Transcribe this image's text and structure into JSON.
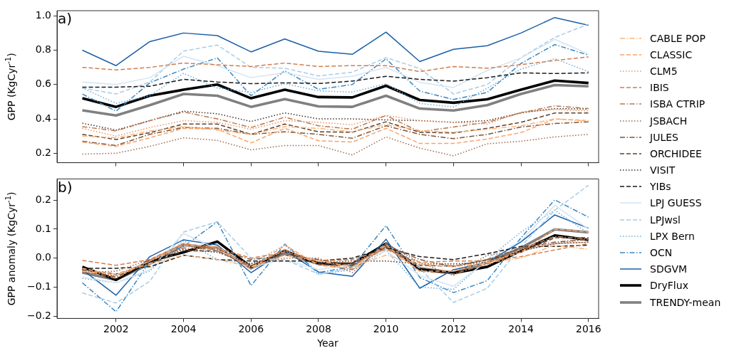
{
  "chart_data": [
    {
      "type": "line",
      "ylabel": "GPP (KgCyr$^{-1}$)",
      "annotations": [
        "a)"
      ],
      "x": [
        2001,
        2002,
        2003,
        2004,
        2005,
        2006,
        2007,
        2008,
        2009,
        2010,
        2011,
        2012,
        2013,
        2014,
        2015,
        2016
      ],
      "xlim": [
        2000.25,
        2016.3
      ],
      "xticks": [
        2002,
        2004,
        2006,
        2008,
        2010,
        2012,
        2014,
        2016
      ],
      "ylim": [
        0.145,
        1.03
      ],
      "yticks": [
        {
          "value": 0.2,
          "label": "0.2"
        },
        0.4,
        0.6,
        0.8,
        {
          "value": 1.0,
          "label": "1.0"
        }
      ],
      "tick_labels": "y",
      "legend": "right",
      "series": [
        {
          "name": "CABLE POP",
          "color": "#fdb57a",
          "line_style": "dashdot",
          "values": [
            0.3,
            0.29,
            0.33,
            0.355,
            0.335,
            0.31,
            0.355,
            0.345,
            0.325,
            0.367,
            0.333,
            0.322,
            0.34,
            0.36,
            0.4,
            0.387
          ]
        },
        {
          "name": "CLASSIC",
          "color": "#fca26a",
          "line_style": "dashed",
          "values": [
            0.265,
            0.24,
            0.29,
            0.345,
            0.34,
            0.26,
            0.345,
            0.273,
            0.265,
            0.345,
            0.257,
            0.257,
            0.283,
            0.32,
            0.4,
            0.39
          ]
        },
        {
          "name": "CLM5",
          "color": "#ec9362",
          "line_style": "dotted",
          "values": [
            0.345,
            0.3,
            0.35,
            0.39,
            0.38,
            0.34,
            0.39,
            0.38,
            0.366,
            0.42,
            0.39,
            0.38,
            0.37,
            0.44,
            0.455,
            0.446
          ]
        },
        {
          "name": "IBIS",
          "color": "#d07f50",
          "line_style": "dashed",
          "values": [
            0.7,
            0.685,
            0.7,
            0.725,
            0.715,
            0.705,
            0.725,
            0.705,
            0.71,
            0.71,
            0.675,
            0.705,
            0.695,
            0.716,
            0.74,
            0.761
          ]
        },
        {
          "name": "ISBA CTRIP",
          "color": "#b9784e",
          "line_style": "dashdot",
          "values": [
            0.355,
            0.33,
            0.39,
            0.44,
            0.4,
            0.35,
            0.41,
            0.36,
            0.34,
            0.42,
            0.325,
            0.353,
            0.38,
            0.435,
            0.476,
            0.46
          ]
        },
        {
          "name": "JSBACH",
          "color": "#a0674a",
          "line_style": "dotted",
          "values": [
            0.195,
            0.2,
            0.24,
            0.29,
            0.275,
            0.22,
            0.245,
            0.245,
            0.19,
            0.295,
            0.23,
            0.185,
            0.255,
            0.27,
            0.295,
            0.31
          ]
        },
        {
          "name": "JULES",
          "color": "#7d5538",
          "line_style": "dashdot",
          "values": [
            0.27,
            0.245,
            0.31,
            0.35,
            0.345,
            0.31,
            0.325,
            0.31,
            0.287,
            0.36,
            0.31,
            0.285,
            0.31,
            0.353,
            0.373,
            0.383
          ]
        },
        {
          "name": "ORCHIDEE",
          "color": "#5e412b",
          "line_style": "dashed",
          "values": [
            0.31,
            0.28,
            0.32,
            0.37,
            0.37,
            0.31,
            0.37,
            0.325,
            0.322,
            0.383,
            0.322,
            0.318,
            0.345,
            0.38,
            0.434,
            0.434
          ]
        },
        {
          "name": "VISIT",
          "color": "#3f2d21",
          "line_style": "dotted",
          "values": [
            0.375,
            0.335,
            0.39,
            0.445,
            0.43,
            0.385,
            0.435,
            0.4,
            0.4,
            0.394,
            0.39,
            0.38,
            0.39,
            0.435,
            0.46,
            0.457
          ]
        },
        {
          "name": "YIBs",
          "color": "#1a1a1a",
          "line_style": "dashed",
          "values": [
            0.585,
            0.585,
            0.59,
            0.63,
            0.615,
            0.605,
            0.61,
            0.606,
            0.62,
            0.648,
            0.63,
            0.62,
            0.64,
            0.668,
            0.664,
            0.668
          ]
        },
        {
          "name": "LPJ GUESS",
          "color": "#d3e4f3",
          "line_style": "solid",
          "values": [
            0.615,
            0.6,
            0.64,
            0.765,
            0.71,
            0.64,
            0.67,
            0.63,
            0.648,
            0.7,
            0.613,
            0.583,
            0.682,
            0.755,
            0.863,
            0.778
          ]
        },
        {
          "name": "LPJwsl",
          "color": "#a6cde8",
          "line_style": "dashed",
          "values": [
            0.58,
            0.545,
            0.615,
            0.795,
            0.83,
            0.7,
            0.695,
            0.65,
            0.672,
            0.757,
            0.693,
            0.545,
            0.6,
            0.757,
            0.874,
            0.952
          ]
        },
        {
          "name": "LPX Bern",
          "color": "#6baed6",
          "line_style": "dotted",
          "values": [
            0.58,
            0.49,
            0.535,
            0.665,
            0.58,
            0.555,
            0.605,
            0.563,
            0.556,
            0.604,
            0.49,
            0.469,
            0.579,
            0.69,
            0.75,
            0.675
          ]
        },
        {
          "name": "OCN",
          "color": "#3a87c2",
          "line_style": "dashdot",
          "values": [
            0.545,
            0.445,
            0.61,
            0.69,
            0.755,
            0.535,
            0.68,
            0.572,
            0.6,
            0.75,
            0.562,
            0.513,
            0.554,
            0.723,
            0.833,
            0.771
          ]
        },
        {
          "name": "SDGVM",
          "color": "#1a5fa8",
          "line_style": "solid",
          "values": [
            0.8,
            0.71,
            0.85,
            0.9,
            0.885,
            0.79,
            0.865,
            0.794,
            0.776,
            0.905,
            0.734,
            0.805,
            0.826,
            0.9,
            0.99,
            0.945
          ]
        },
        {
          "name": "DryFlux",
          "color": "#000000",
          "line_style": "solid",
          "values": [
            0.52,
            0.47,
            0.535,
            0.57,
            0.6,
            0.52,
            0.57,
            0.527,
            0.525,
            0.593,
            0.51,
            0.494,
            0.514,
            0.57,
            0.623,
            0.609
          ]
        },
        {
          "name": "TRENDY-mean",
          "color": "#808080",
          "line_style": "solid",
          "values": [
            0.45,
            0.42,
            0.48,
            0.545,
            0.535,
            0.47,
            0.515,
            0.473,
            0.47,
            0.535,
            0.46,
            0.449,
            0.48,
            0.545,
            0.597,
            0.59
          ]
        }
      ]
    },
    {
      "type": "line",
      "xlabel": "Year",
      "ylabel": "GPP anomaly (KgCyr$^{-1}$)",
      "annotations": [
        "b)"
      ],
      "x": [
        2001,
        2002,
        2003,
        2004,
        2005,
        2006,
        2007,
        2008,
        2009,
        2010,
        2011,
        2012,
        2013,
        2014,
        2015,
        2016
      ],
      "xlim": [
        2000.25,
        2016.3
      ],
      "xticks": [
        2002,
        2004,
        2006,
        2008,
        2010,
        2012,
        2014,
        2016
      ],
      "ylim": [
        -0.208,
        0.273
      ],
      "yticks": [
        {
          "value": -0.2,
          "label": "−0.2"
        },
        {
          "value": -0.1,
          "label": "−0.1"
        },
        {
          "value": 0,
          "label": "0.0"
        },
        0.1,
        0.2
      ],
      "series": [
        {
          "color": "#fdb57a",
          "line_style": "dashdot",
          "values": [
            -0.045,
            -0.055,
            -0.02,
            0.01,
            -0.005,
            -0.03,
            0.01,
            -0.01,
            -0.03,
            0.01,
            -0.02,
            -0.03,
            -0.015,
            0.0,
            0.045,
            0.03
          ]
        },
        {
          "color": "#fca26a",
          "line_style": "dashed",
          "values": [
            -0.035,
            -0.06,
            -0.01,
            0.045,
            0.04,
            -0.04,
            0.045,
            -0.025,
            -0.035,
            0.045,
            -0.045,
            -0.045,
            -0.015,
            0.02,
            0.1,
            0.09
          ]
        },
        {
          "color": "#ec9362",
          "line_style": "dotted",
          "values": [
            -0.045,
            -0.06,
            -0.01,
            0.035,
            0.03,
            -0.025,
            0.025,
            -0.01,
            -0.015,
            0.03,
            -0.025,
            -0.025,
            -0.025,
            0.03,
            0.05,
            0.055
          ]
        },
        {
          "color": "#d07f50",
          "line_style": "dashed",
          "values": [
            -0.008,
            -0.025,
            -0.005,
            0.05,
            0.035,
            0.0,
            0.02,
            -0.01,
            -0.005,
            0.03,
            -0.015,
            -0.01,
            -0.01,
            0.005,
            0.028,
            0.05
          ]
        },
        {
          "color": "#b9784e",
          "line_style": "dashdot",
          "values": [
            -0.045,
            -0.07,
            -0.01,
            0.05,
            0.025,
            -0.03,
            0.03,
            -0.02,
            -0.04,
            0.04,
            -0.045,
            -0.055,
            -0.02,
            0.03,
            0.075,
            0.065
          ]
        },
        {
          "color": "#a0674a",
          "line_style": "dotted",
          "values": [
            -0.05,
            -0.045,
            -0.005,
            0.045,
            0.03,
            -0.025,
            0.0,
            0.0,
            -0.05,
            0.05,
            -0.015,
            -0.06,
            0.01,
            0.025,
            0.05,
            0.065
          ]
        },
        {
          "color": "#7d5538",
          "line_style": "dashdot",
          "values": [
            -0.04,
            -0.065,
            -0.01,
            0.035,
            0.03,
            -0.005,
            0.01,
            -0.005,
            -0.025,
            0.045,
            -0.005,
            -0.03,
            -0.005,
            0.035,
            0.055,
            0.065
          ]
        },
        {
          "color": "#5e412b",
          "line_style": "dashed",
          "values": [
            -0.04,
            -0.055,
            -0.02,
            0.025,
            0.025,
            -0.03,
            0.025,
            -0.02,
            -0.02,
            0.04,
            -0.025,
            -0.028,
            -0.005,
            0.02,
            0.07,
            0.07
          ]
        },
        {
          "color": "#3f2d21",
          "line_style": "dotted",
          "values": [
            -0.04,
            -0.06,
            -0.01,
            0.03,
            0.02,
            -0.02,
            0.02,
            -0.015,
            -0.01,
            -0.01,
            -0.02,
            -0.02,
            -0.015,
            0.025,
            0.05,
            0.055
          ]
        },
        {
          "color": "#1a1a1a",
          "line_style": "dashed",
          "values": [
            -0.035,
            -0.035,
            -0.03,
            0.01,
            -0.005,
            -0.01,
            -0.01,
            -0.01,
            0.0,
            0.035,
            0.005,
            -0.005,
            0.015,
            0.04,
            0.04,
            0.045
          ]
        },
        {
          "color": "#d3e4f3",
          "line_style": "solid",
          "values": [
            -0.065,
            -0.085,
            -0.04,
            0.085,
            0.03,
            -0.03,
            -0.005,
            -0.04,
            -0.02,
            0.025,
            -0.06,
            -0.097,
            -0.01,
            0.06,
            0.182,
            0.1
          ]
        },
        {
          "color": "#a6cde8",
          "line_style": "dashed",
          "values": [
            -0.12,
            -0.155,
            -0.08,
            0.09,
            0.125,
            0.0,
            -0.005,
            -0.055,
            -0.035,
            0.05,
            -0.035,
            -0.153,
            -0.104,
            0.04,
            0.165,
            0.251
          ]
        },
        {
          "color": "#6baed6",
          "line_style": "dotted",
          "values": [
            -0.07,
            -0.085,
            -0.045,
            0.06,
            -0.005,
            -0.02,
            0.045,
            -0.056,
            -0.04,
            0.026,
            -0.1,
            -0.108,
            -0.005,
            0.09,
            0.165,
            0.085
          ]
        },
        {
          "color": "#3a87c2",
          "line_style": "dashdot",
          "values": [
            -0.085,
            -0.185,
            -0.01,
            0.04,
            0.125,
            -0.095,
            0.048,
            -0.05,
            -0.03,
            0.112,
            -0.067,
            -0.119,
            -0.078,
            0.07,
            0.201,
            0.141
          ]
        },
        {
          "color": "#1a5fa8",
          "line_style": "solid",
          "values": [
            -0.04,
            -0.128,
            0.005,
            0.063,
            0.045,
            -0.05,
            0.025,
            -0.048,
            -0.063,
            0.065,
            -0.104,
            -0.04,
            -0.015,
            0.056,
            0.149,
            0.103
          ]
        },
        {
          "color": "#000000",
          "line_style": "solid",
          "values": [
            -0.03,
            -0.075,
            -0.01,
            0.02,
            0.057,
            -0.03,
            0.025,
            -0.019,
            -0.02,
            0.05,
            -0.039,
            -0.052,
            -0.03,
            0.025,
            0.078,
            0.063
          ]
        },
        {
          "color": "#808080",
          "line_style": "solid",
          "values": [
            -0.05,
            -0.075,
            -0.02,
            0.045,
            0.035,
            -0.035,
            0.015,
            -0.02,
            -0.025,
            0.04,
            -0.035,
            -0.05,
            -0.015,
            0.035,
            0.099,
            0.089
          ]
        }
      ]
    }
  ]
}
